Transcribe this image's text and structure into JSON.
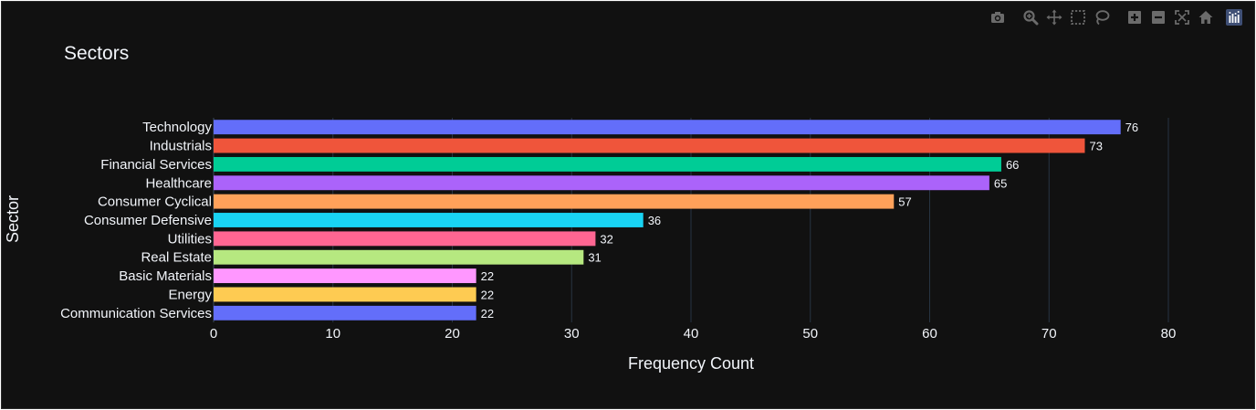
{
  "modebar": {
    "buttons": [
      {
        "name": "camera-icon",
        "group": 1
      },
      {
        "name": "zoom-icon",
        "group": 2
      },
      {
        "name": "pan-icon",
        "group": 2
      },
      {
        "name": "box-select-icon",
        "group": 2
      },
      {
        "name": "lasso-select-icon",
        "group": 2
      },
      {
        "name": "zoom-in-icon",
        "group": 3
      },
      {
        "name": "zoom-out-icon",
        "group": 3
      },
      {
        "name": "autoscale-icon",
        "group": 3
      },
      {
        "name": "reset-axes-icon",
        "group": 3
      }
    ],
    "logo": "plotly-logo-icon"
  },
  "chart_data": {
    "type": "bar",
    "orientation": "horizontal",
    "title": "Sectors",
    "xlabel": "Frequency Count",
    "ylabel": "Sector",
    "xlim": [
      0,
      80
    ],
    "xticks": [
      0,
      10,
      20,
      30,
      40,
      50,
      60,
      70,
      80
    ],
    "grid": true,
    "categories": [
      "Technology",
      "Industrials",
      "Financial Services",
      "Healthcare",
      "Consumer Cyclical",
      "Consumer Defensive",
      "Utilities",
      "Real Estate",
      "Basic Materials",
      "Energy",
      "Communication Services"
    ],
    "values": [
      76,
      73,
      66,
      65,
      57,
      36,
      32,
      31,
      22,
      22,
      22
    ],
    "colors": [
      "#636efa",
      "#ef553b",
      "#00cc96",
      "#ab63fa",
      "#ffa15a",
      "#19d3f3",
      "#ff6692",
      "#b6e880",
      "#ff97ff",
      "#fecb52",
      "#636efa"
    ],
    "data_labels": true
  },
  "colors": {
    "background": "#111111",
    "grid": "#283442",
    "text": "#f2f5fa",
    "modebar_icon": "#6b6b6b"
  }
}
